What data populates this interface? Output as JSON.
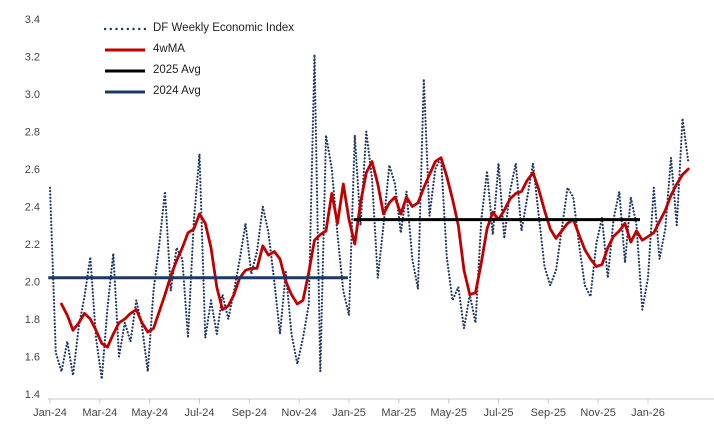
{
  "page": {
    "background": "#FFFFFF"
  },
  "chart_data": {
    "type": "line",
    "title": "",
    "x_unit": "week",
    "x_tick_labels": [
      "Jan-24",
      "Mar-24",
      "May-24",
      "Jul-24",
      "Sep-24",
      "Nov-24",
      "Jan-25",
      "Mar-25",
      "May-25",
      "Jul-25",
      "Sep-25",
      "Nov-25",
      "Jan-26"
    ],
    "n_points": 112,
    "ylim": [
      1.4,
      3.4
    ],
    "ystep": 0.2,
    "grid": false,
    "legend_position": "top-left",
    "axis_color": "#C8C8C8",
    "tick_label_color": "#454545",
    "series": [
      {
        "name": "DF Weekly Economic Index",
        "type": "line",
        "style": "dotted",
        "color": "#1F3864",
        "values": [
          2.5,
          1.62,
          1.52,
          1.68,
          1.5,
          1.76,
          1.92,
          2.13,
          1.7,
          1.48,
          1.86,
          2.15,
          1.6,
          1.78,
          1.68,
          1.9,
          1.76,
          1.52,
          1.95,
          2.2,
          2.48,
          1.95,
          2.18,
          2.12,
          1.7,
          2.32,
          2.68,
          1.7,
          1.9,
          1.72,
          1.93,
          1.8,
          1.95,
          2.12,
          2.31,
          2.04,
          2.16,
          2.4,
          2.26,
          2.0,
          1.72,
          2.05,
          1.72,
          1.56,
          1.7,
          1.88,
          3.21,
          1.52,
          2.78,
          2.6,
          2.25,
          1.95,
          1.82,
          2.78,
          2.3,
          2.8,
          2.55,
          2.02,
          2.3,
          2.62,
          2.52,
          2.26,
          2.48,
          2.12,
          1.96,
          3.08,
          2.35,
          2.6,
          2.66,
          2.13,
          1.9,
          1.97,
          1.75,
          1.93,
          1.78,
          2.33,
          2.59,
          2.25,
          2.63,
          2.23,
          2.48,
          2.63,
          2.27,
          2.45,
          2.63,
          2.35,
          2.08,
          1.98,
          2.06,
          2.28,
          2.5,
          2.45,
          2.2,
          1.98,
          1.92,
          2.2,
          2.34,
          2.02,
          2.33,
          2.48,
          2.1,
          2.45,
          2.3,
          1.85,
          2.02,
          2.5,
          2.12,
          2.28,
          2.66,
          2.3,
          2.87,
          2.64
        ]
      },
      {
        "name": "4wMA",
        "type": "line",
        "style": "solid",
        "color": "#C00000",
        "values": [
          null,
          null,
          1.88,
          1.82,
          1.74,
          1.78,
          1.83,
          1.8,
          1.74,
          1.67,
          1.65,
          1.72,
          1.78,
          1.8,
          1.83,
          1.85,
          1.78,
          1.73,
          1.75,
          1.84,
          1.93,
          2.03,
          2.11,
          2.18,
          2.26,
          2.28,
          2.36,
          2.31,
          2.18,
          1.97,
          1.85,
          1.87,
          1.93,
          2.02,
          2.06,
          2.07,
          2.07,
          2.19,
          2.14,
          2.16,
          2.12,
          2.0,
          1.93,
          1.88,
          1.9,
          2.05,
          2.22,
          2.25,
          2.27,
          2.47,
          2.31,
          2.52,
          2.33,
          2.2,
          2.42,
          2.58,
          2.64,
          2.52,
          2.36,
          2.42,
          2.45,
          2.36,
          2.45,
          2.4,
          2.42,
          2.5,
          2.57,
          2.64,
          2.66,
          2.56,
          2.44,
          2.3,
          2.06,
          1.93,
          1.94,
          2.1,
          2.28,
          2.37,
          2.33,
          2.38,
          2.44,
          2.47,
          2.48,
          2.54,
          2.58,
          2.49,
          2.38,
          2.28,
          2.23,
          2.27,
          2.31,
          2.33,
          2.25,
          2.17,
          2.12,
          2.08,
          2.09,
          2.18,
          2.24,
          2.27,
          2.31,
          2.21,
          2.27,
          2.22,
          2.24,
          2.26,
          2.32,
          2.38,
          2.46,
          2.52,
          2.57,
          2.6
        ]
      },
      {
        "name": "2025 Avg",
        "type": "hline",
        "style": "solid",
        "color": "#000000",
        "value": 2.33,
        "week_span": [
          52.8,
          102.6
        ]
      },
      {
        "name": "2024 Avg",
        "type": "hline",
        "style": "solid",
        "color": "#1F3864",
        "value": 2.02,
        "week_span": [
          -0.3,
          51.8
        ]
      }
    ]
  }
}
